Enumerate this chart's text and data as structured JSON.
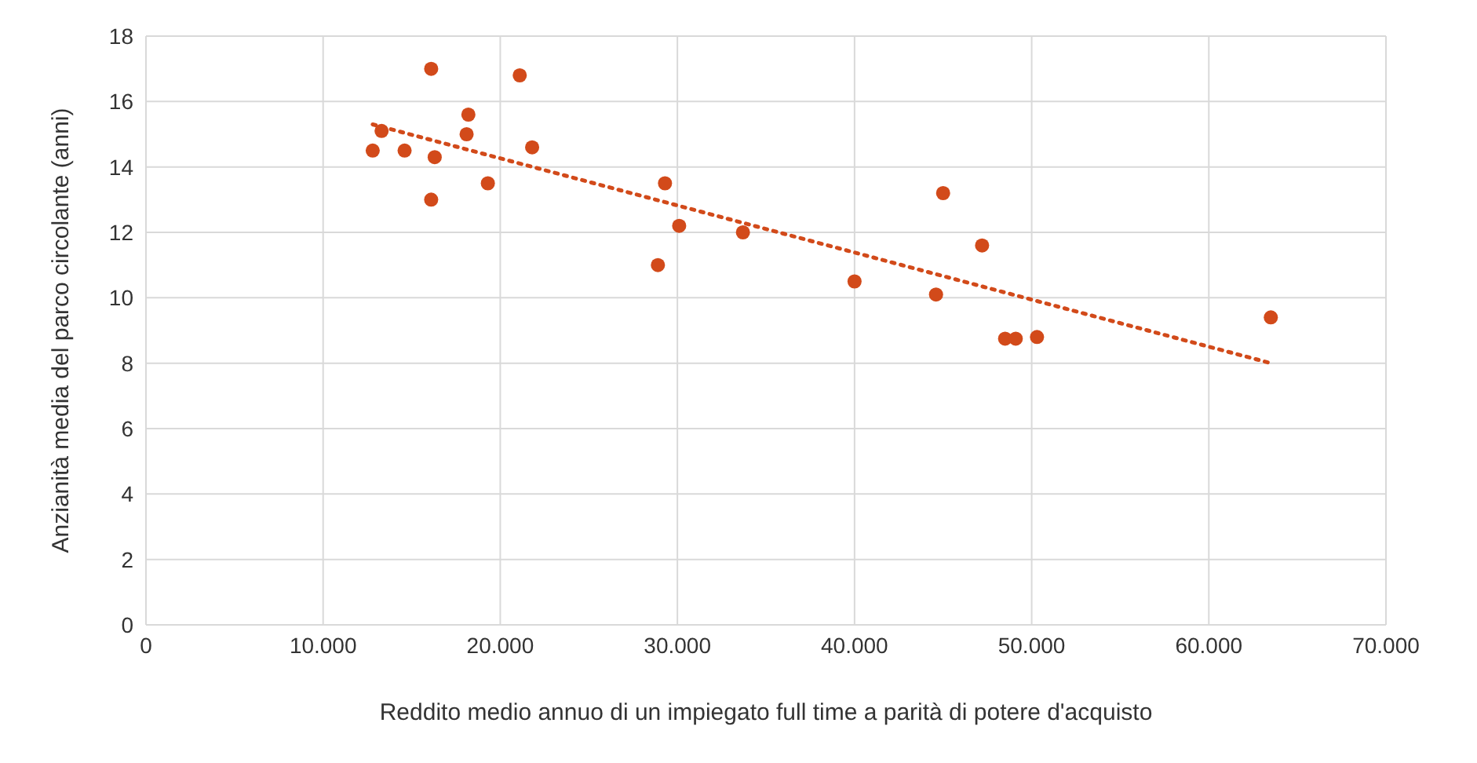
{
  "chart_data": {
    "type": "scatter",
    "xlabel": "Reddito medio annuo di un impiegato full time a parità di potere d'acquisto",
    "ylabel": "Anzianità media del parco circolante (anni)",
    "xlim": [
      0,
      70000
    ],
    "xticks": [
      0,
      {
        "value": 10000,
        "label": "10.000"
      },
      {
        "value": 20000,
        "label": "20.000"
      },
      {
        "value": 30000,
        "label": "30.000"
      },
      {
        "value": 40000,
        "label": "40.000"
      },
      {
        "value": 50000,
        "label": "50.000"
      },
      {
        "value": 60000,
        "label": "60.000"
      },
      {
        "value": 70000,
        "label": "70.000"
      }
    ],
    "ylim": [
      0,
      18
    ],
    "yticks": [
      0,
      2,
      4,
      6,
      8,
      10,
      12,
      14,
      16,
      18
    ],
    "grid": true,
    "series": [
      {
        "color": "#d24a1a",
        "marker": "circle",
        "x": [
          12800,
          13300,
          14600,
          16100,
          16300,
          16100,
          18100,
          18200,
          19300,
          21100,
          21800,
          28900,
          29300,
          30100,
          33700,
          40000,
          44600,
          45000,
          47200,
          48500,
          49100,
          50300,
          63500
        ],
        "values": [
          14.5,
          15.1,
          14.5,
          17.0,
          14.3,
          13.0,
          15.0,
          15.6,
          13.5,
          16.8,
          14.6,
          11.0,
          13.5,
          12.2,
          12.0,
          10.5,
          10.1,
          13.2,
          11.6,
          8.75,
          8.75,
          8.8,
          9.4
        ]
      },
      {
        "type": "line",
        "color": "#d24a1a",
        "line_style": "dotted",
        "marker": "none",
        "x": [
          12800,
          63500
        ],
        "values": [
          15.3,
          8.0
        ]
      }
    ]
  }
}
